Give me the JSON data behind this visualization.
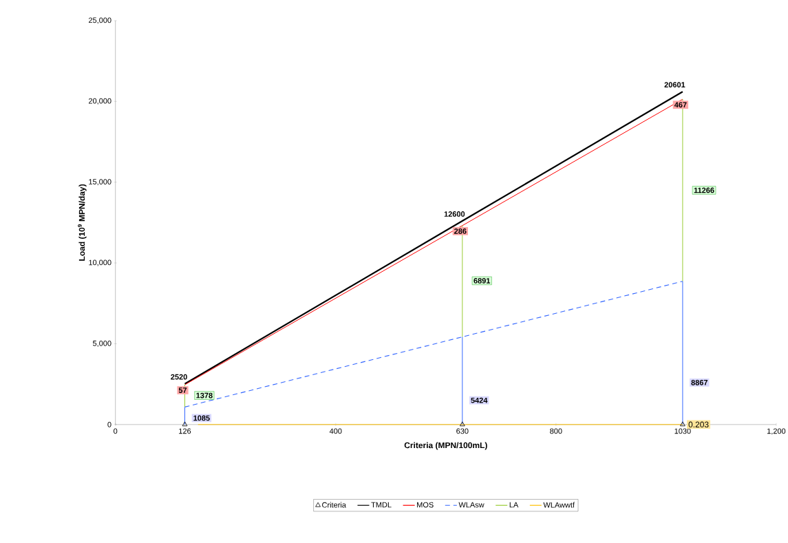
{
  "chart_data": {
    "type": "line",
    "xlabel": "Criteria (MPN/100mL)",
    "ylabel": "Load (10$^{9}$ MPN/day)",
    "xlim": [
      0,
      1200
    ],
    "ylim": [
      0,
      25000
    ],
    "xticks": [
      0,
      126,
      400,
      630,
      800,
      1030,
      {
        "value": 1200,
        "label": "1,200"
      }
    ],
    "yticks": [
      0,
      {
        "value": 5000,
        "label": "5,000"
      },
      {
        "value": 10000,
        "label": "10,000"
      },
      {
        "value": 15000,
        "label": "15,000"
      },
      {
        "value": 20000,
        "label": "20,000"
      },
      {
        "value": 25000,
        "label": "25,000"
      }
    ],
    "grid": false,
    "legend": "bottom",
    "marker": "none",
    "series": [
      {
        "name": "Criteria",
        "type": "scatter",
        "marker": "triangle",
        "color": "#000000",
        "x": [
          126,
          630,
          1030
        ],
        "values": [
          0,
          0,
          0
        ]
      },
      {
        "name": "TMDL",
        "color": "#000000",
        "x": [
          126,
          630,
          1030
        ],
        "values": [
          2520,
          12600,
          20601
        ],
        "value_labels": [
          "2520",
          "12600",
          "20601"
        ]
      },
      {
        "name": "MOS",
        "color": "#ff0000",
        "x": [
          126,
          630,
          1030
        ],
        "values": [
          2463,
          12314,
          20134
        ]
      },
      {
        "name": "WLAsw",
        "color": "#3366ff",
        "line_style": "dashed",
        "x": [
          126,
          630,
          1030
        ],
        "values": [
          1085,
          5424,
          8867
        ]
      },
      {
        "name": "LA",
        "color": "#99cc33",
        "x": [
          126,
          126
        ],
        "values": [
          1085,
          2463
        ]
      },
      {
        "color": "#99cc33",
        "x": [
          630,
          630
        ],
        "values": [
          5424,
          12314
        ]
      },
      {
        "color": "#99cc33",
        "x": [
          1030,
          1030
        ],
        "values": [
          8867,
          20134
        ]
      },
      {
        "color": "#3366ff",
        "line_style": "solid",
        "x": [
          126,
          126
        ],
        "values": [
          0,
          1085
        ]
      },
      {
        "color": "#3366ff",
        "line_style": "solid",
        "x": [
          630,
          630
        ],
        "values": [
          0,
          5424
        ]
      },
      {
        "color": "#3366ff",
        "line_style": "solid",
        "x": [
          1030,
          1030
        ],
        "values": [
          0,
          8867
        ]
      },
      {
        "name": "WLAwwtf",
        "color": "#ffc000",
        "x": [
          150,
          1030
        ],
        "values": [
          0.203,
          0.203
        ],
        "value_labels": [
          null,
          "0.203"
        ]
      }
    ],
    "annotations": [
      {
        "text": "57",
        "x": 126,
        "y": 2463
      },
      {
        "text": "286",
        "x": 630,
        "y": 12314
      },
      {
        "text": "467",
        "x": 1030,
        "y": 20134
      },
      {
        "text": "1378",
        "x": 126,
        "y": 1800
      },
      {
        "text": "6891",
        "x": 630,
        "y": 8900
      },
      {
        "text": "11266",
        "x": 1030,
        "y": 14500
      },
      {
        "text": "1085",
        "x": 126,
        "y": 400
      },
      {
        "text": "5424",
        "x": 630,
        "y": 1500
      },
      {
        "text": "8867",
        "x": 1030,
        "y": 2600
      }
    ]
  }
}
